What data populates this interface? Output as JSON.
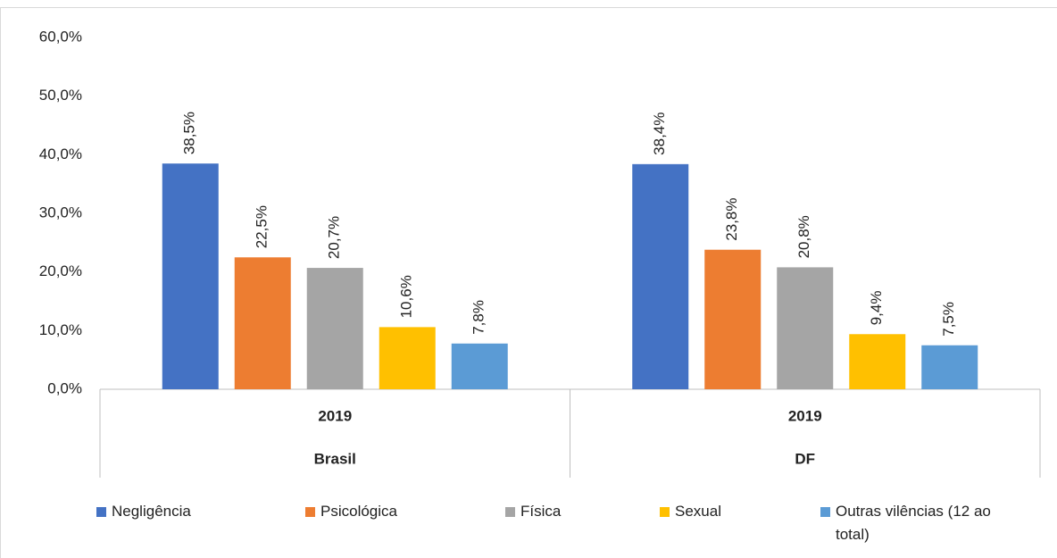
{
  "chart_data": {
    "type": "bar",
    "categories": [
      "Brasil",
      "DF"
    ],
    "category_years": [
      "2019",
      "2019"
    ],
    "series": [
      {
        "name": "Negligência",
        "color": "#4472c4",
        "values": [
          38.5,
          38.4
        ],
        "value_labels": [
          "38,5%",
          "38,4%"
        ]
      },
      {
        "name": "Psicológica",
        "color": "#ed7d31",
        "values": [
          22.5,
          23.8
        ],
        "value_labels": [
          "22,5%",
          "23,8%"
        ]
      },
      {
        "name": "Física",
        "color": "#a5a5a5",
        "values": [
          20.7,
          20.8
        ],
        "value_labels": [
          "20,7%",
          "20,8%"
        ]
      },
      {
        "name": "Sexual",
        "color": "#ffc000",
        "values": [
          10.6,
          9.4
        ],
        "value_labels": [
          "10,6%",
          "9,4%"
        ]
      },
      {
        "name": "Outras vilências (12 ao total)",
        "color": "#5b9bd5",
        "values": [
          7.8,
          7.5
        ],
        "value_labels": [
          "7,8%",
          "7,5%"
        ]
      }
    ],
    "ylim": [
      0,
      60
    ],
    "yticks": [
      {
        "value": 0,
        "label": "0,0%"
      },
      {
        "value": 10,
        "label": "10,0%"
      },
      {
        "value": 20,
        "label": "20,0%"
      },
      {
        "value": 30,
        "label": "30,0%"
      },
      {
        "value": 40,
        "label": "40,0%"
      },
      {
        "value": 50,
        "label": "50,0%"
      },
      {
        "value": 60,
        "label": "60,0%"
      }
    ],
    "grid": false
  }
}
